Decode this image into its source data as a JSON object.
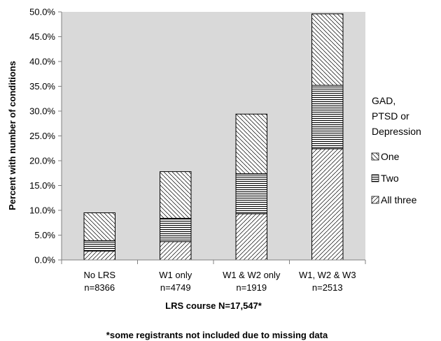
{
  "chart_data": {
    "type": "bar",
    "stacked": true,
    "categories": [
      [
        "No LRS",
        "n=8366"
      ],
      [
        "W1 only",
        "n=4749"
      ],
      [
        "W1 & W2 only",
        "n=1919"
      ],
      [
        "W1, W2 & W3",
        "n=2513"
      ]
    ],
    "series": [
      {
        "name": "All three",
        "values": [
          1.8,
          3.7,
          9.3,
          22.4
        ],
        "pattern": "hatch-diagonal-up"
      },
      {
        "name": "Two",
        "values": [
          2.1,
          4.7,
          8.1,
          12.8
        ],
        "pattern": "horizontal-lines"
      },
      {
        "name": "One",
        "values": [
          5.6,
          9.4,
          12.0,
          14.4
        ],
        "pattern": "hatch-diagonal-down"
      }
    ],
    "ylabel": "Percent with number of conditions",
    "xlabel": "LRS course N=17,547*",
    "ylim": [
      0,
      50
    ],
    "yticks": [
      "0.0%",
      "5.0%",
      "10.0%",
      "15.0%",
      "20.0%",
      "25.0%",
      "30.0%",
      "35.0%",
      "40.0%",
      "45.0%",
      "50.0%"
    ],
    "legend": {
      "title": [
        "GAD,",
        "PTSD or",
        "Depression"
      ],
      "items": [
        "One",
        "Two",
        "All three"
      ],
      "placement": "right"
    },
    "plot_background": "#d9d9d9",
    "bar_fill": "#ffffff",
    "grid": false
  },
  "footnote": "*some registrants not included due to missing data"
}
